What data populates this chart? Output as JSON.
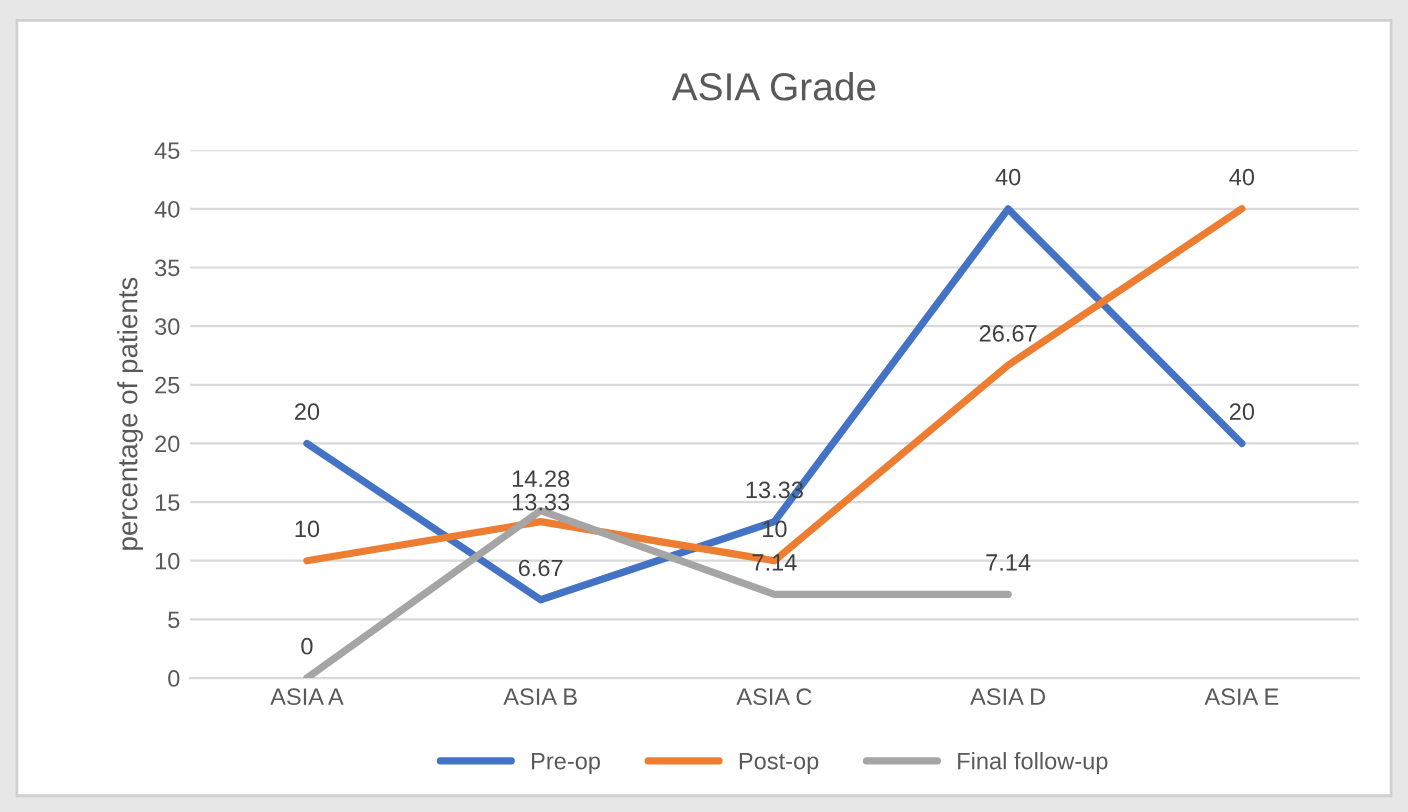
{
  "chart_data": {
    "type": "line",
    "title": "ASIA Grade",
    "ylabel": "percentage of patients",
    "categories": [
      "ASIA A",
      "ASIA B",
      "ASIA C",
      "ASIA D",
      "ASIA E"
    ],
    "series": [
      {
        "name": "Pre-op",
        "color": "#4472c4",
        "values": [
          20,
          6.67,
          13.33,
          40,
          20
        ]
      },
      {
        "name": "Post-op",
        "color": "#ed7d31",
        "values": [
          10,
          13.33,
          10,
          26.67,
          40
        ]
      },
      {
        "name": "Final follow-up",
        "color": "#a5a5a5",
        "values": [
          0,
          14.28,
          7.14,
          7.14,
          null
        ]
      }
    ],
    "ylim": [
      0,
      45
    ],
    "yticks": [
      0,
      5,
      10,
      15,
      20,
      25,
      30,
      35,
      40,
      45
    ],
    "grid": "y",
    "legend": "bottom",
    "data_labels": true,
    "marker": "none",
    "line_style": "solid"
  }
}
